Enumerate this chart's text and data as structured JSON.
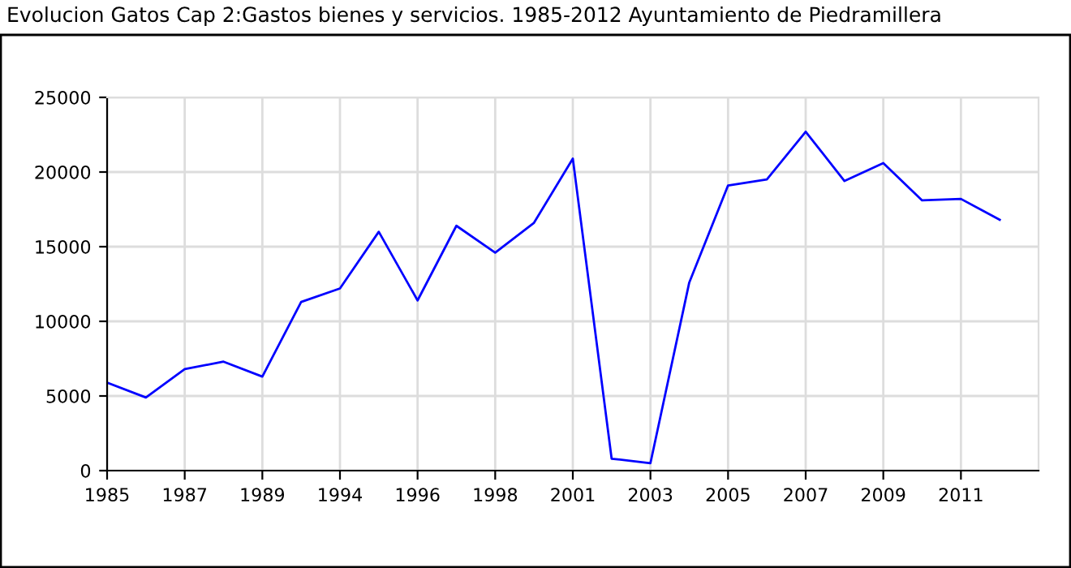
{
  "chart_data": {
    "type": "line",
    "title": "Evolucion Gatos Cap 2:Gastos bienes y servicios. 1985-2012 Ayuntamiento de Piedramillera",
    "categories": [
      "1985",
      null,
      "1987",
      null,
      "1989",
      null,
      "1994",
      null,
      "1996",
      null,
      "1998",
      null,
      "2001",
      null,
      "2003",
      null,
      "2005",
      null,
      "2007",
      null,
      "2009",
      null,
      "2011",
      null
    ],
    "series": [
      {
        "color": "#0000ff",
        "values": [
          5900,
          4900,
          6800,
          7300,
          6300,
          11300,
          12200,
          16000,
          11400,
          16400,
          14600,
          16600,
          20900,
          800,
          500,
          12600,
          19100,
          19500,
          22700,
          19400,
          20600,
          18100,
          18200,
          16800
        ]
      }
    ],
    "ylim": [
      0,
      25000
    ],
    "yticks": [
      0,
      5000,
      10000,
      15000,
      20000,
      25000
    ],
    "grid": true,
    "legend": false,
    "marker": "none",
    "line_style": "solid"
  }
}
